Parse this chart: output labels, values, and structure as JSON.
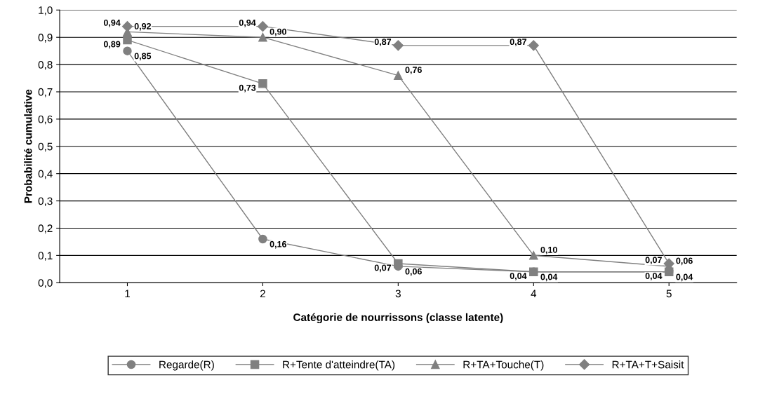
{
  "chart_data": {
    "type": "line",
    "xlabel": "Catégorie de nourrissons (classe latente)",
    "ylabel": "Probabilité cumulative",
    "categories": [
      "1",
      "2",
      "3",
      "4",
      "5"
    ],
    "series": [
      {
        "name": "Regarde(R)",
        "color": "#808080",
        "marker": "circle",
        "values": [
          0.85,
          0.16,
          0.06,
          0.04,
          0.04
        ],
        "value_labels": [
          "0,85",
          "0,16",
          "0,06",
          "0,04",
          "0,04"
        ]
      },
      {
        "name": "R+Tente d'atteindre(TA)",
        "color": "#808080",
        "marker": "square",
        "values": [
          0.89,
          0.73,
          0.07,
          0.04,
          0.04
        ],
        "value_labels": [
          "0,89",
          "0,73",
          "0,07",
          "0,04",
          "0,04"
        ]
      },
      {
        "name": "R+TA+Touche(T)",
        "color": "#808080",
        "marker": "triangle",
        "values": [
          0.92,
          0.9,
          0.76,
          0.1,
          0.06
        ],
        "value_labels": [
          "0,92",
          "0,90",
          "0,76",
          "0,10",
          "0,06"
        ]
      },
      {
        "name": "R+TA+T+Saisit",
        "color": "#808080",
        "marker": "diamond",
        "values": [
          0.94,
          0.94,
          0.87,
          0.87,
          0.07
        ],
        "value_labels": [
          "0,94",
          "0,94",
          "0,87",
          "0,87",
          "0,07"
        ]
      }
    ],
    "ylim": [
      0,
      1
    ],
    "yticks": [
      {
        "value": 0,
        "label": "0,0"
      },
      {
        "value": 0.1,
        "label": "0,1"
      },
      {
        "value": 0.2,
        "label": "0,2"
      },
      {
        "value": 0.3,
        "label": "0,3"
      },
      {
        "value": 0.4,
        "label": "0,4"
      },
      {
        "value": 0.5,
        "label": "0,5"
      },
      {
        "value": 0.6,
        "label": "0,6"
      },
      {
        "value": 0.7,
        "label": "0,7"
      },
      {
        "value": 0.8,
        "label": "0,8"
      },
      {
        "value": 0.9,
        "label": "0,9"
      },
      {
        "value": 1.0,
        "label": "1,0"
      }
    ],
    "grid": "y",
    "legend": "bottom",
    "line_style": "solid"
  }
}
